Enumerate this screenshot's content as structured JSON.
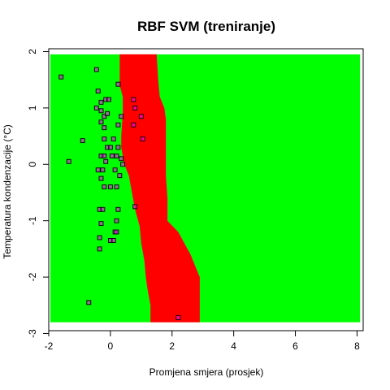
{
  "chart_data": {
    "type": "scatter",
    "title": "RBF SVM (treniranje)",
    "xlabel": "Promjena smjera (prosjek)",
    "ylabel": "Temperatura kondenzacije (°C)",
    "xlim": [
      -2.0,
      8.2
    ],
    "ylim": [
      -2.95,
      2.05
    ],
    "x_ticks": [
      -2,
      0,
      2,
      4,
      6,
      8
    ],
    "y_ticks": [
      -3,
      -2,
      -1,
      0,
      1,
      2
    ],
    "grid": false,
    "legend": "none",
    "background_region": {
      "color": "#00ff00",
      "x": [
        -1.95,
        8.1
      ],
      "y": [
        -2.8,
        1.95
      ]
    },
    "decision_region": {
      "color": "#ff0000",
      "left_boundary": [
        {
          "y": 1.95,
          "x": 0.3
        },
        {
          "y": 1.4,
          "x": 0.3
        },
        {
          "y": 1.2,
          "x": 0.4
        },
        {
          "y": 0.9,
          "x": 0.4
        },
        {
          "y": 0.5,
          "x": 0.35
        },
        {
          "y": 0.3,
          "x": 0.35
        },
        {
          "y": 0.0,
          "x": 0.45
        },
        {
          "y": -0.2,
          "x": 0.6
        },
        {
          "y": -0.5,
          "x": 0.7
        },
        {
          "y": -0.8,
          "x": 0.8
        },
        {
          "y": -1.1,
          "x": 0.95
        },
        {
          "y": -1.4,
          "x": 1.0
        },
        {
          "y": -1.7,
          "x": 1.1
        },
        {
          "y": -2.0,
          "x": 1.15
        },
        {
          "y": -2.2,
          "x": 1.2
        },
        {
          "y": -2.5,
          "x": 1.3
        },
        {
          "y": -2.8,
          "x": 1.3
        }
      ],
      "right_boundary": [
        {
          "y": 1.95,
          "x": 1.5
        },
        {
          "y": 1.5,
          "x": 1.55
        },
        {
          "y": 1.2,
          "x": 1.6
        },
        {
          "y": 1.0,
          "x": 1.75
        },
        {
          "y": 0.8,
          "x": 1.8
        },
        {
          "y": 0.3,
          "x": 1.8
        },
        {
          "y": -0.2,
          "x": 1.8
        },
        {
          "y": -0.6,
          "x": 1.85
        },
        {
          "y": -1.0,
          "x": 1.85
        },
        {
          "y": -1.2,
          "x": 2.2
        },
        {
          "y": -1.4,
          "x": 2.4
        },
        {
          "y": -1.6,
          "x": 2.6
        },
        {
          "y": -1.8,
          "x": 2.75
        },
        {
          "y": -2.0,
          "x": 2.9
        },
        {
          "y": -2.2,
          "x": 2.9
        },
        {
          "y": -2.5,
          "x": 2.9
        },
        {
          "y": -2.8,
          "x": 2.9
        }
      ]
    },
    "points": [
      {
        "x": -1.6,
        "y": 1.55
      },
      {
        "x": -0.45,
        "y": 1.68
      },
      {
        "x": -1.35,
        "y": 0.05
      },
      {
        "x": -0.9,
        "y": 0.42
      },
      {
        "x": 0.25,
        "y": 1.42
      },
      {
        "x": -0.4,
        "y": 1.3
      },
      {
        "x": -0.3,
        "y": 1.1
      },
      {
        "x": -0.15,
        "y": 1.15
      },
      {
        "x": -0.05,
        "y": 1.15
      },
      {
        "x": -0.45,
        "y": 1.0
      },
      {
        "x": -0.3,
        "y": 0.95
      },
      {
        "x": -0.2,
        "y": 0.85
      },
      {
        "x": -0.1,
        "y": 0.9
      },
      {
        "x": -0.3,
        "y": 0.75
      },
      {
        "x": -0.2,
        "y": 0.65
      },
      {
        "x": 0.25,
        "y": 0.7
      },
      {
        "x": 0.35,
        "y": 0.85
      },
      {
        "x": -0.2,
        "y": 0.45
      },
      {
        "x": 0.1,
        "y": 0.45
      },
      {
        "x": -0.1,
        "y": 0.3
      },
      {
        "x": 0.0,
        "y": 0.3
      },
      {
        "x": 0.25,
        "y": 0.3
      },
      {
        "x": -0.3,
        "y": 0.15
      },
      {
        "x": -0.2,
        "y": 0.15
      },
      {
        "x": 0.05,
        "y": 0.15
      },
      {
        "x": 0.2,
        "y": 0.15
      },
      {
        "x": 0.35,
        "y": 0.1
      },
      {
        "x": 0.4,
        "y": 0.0
      },
      {
        "x": -0.15,
        "y": 0.05
      },
      {
        "x": -0.4,
        "y": -0.1
      },
      {
        "x": -0.25,
        "y": -0.1
      },
      {
        "x": 0.15,
        "y": -0.1
      },
      {
        "x": 0.3,
        "y": -0.2
      },
      {
        "x": -0.3,
        "y": -0.25
      },
      {
        "x": -0.2,
        "y": -0.4
      },
      {
        "x": 0.0,
        "y": -0.4
      },
      {
        "x": 0.2,
        "y": -0.4
      },
      {
        "x": -0.35,
        "y": -0.8
      },
      {
        "x": -0.25,
        "y": -0.8
      },
      {
        "x": 0.25,
        "y": -0.8
      },
      {
        "x": 0.2,
        "y": -1.0
      },
      {
        "x": -0.3,
        "y": -1.05
      },
      {
        "x": 0.15,
        "y": -1.2
      },
      {
        "x": 0.2,
        "y": -1.2
      },
      {
        "x": -0.35,
        "y": -1.3
      },
      {
        "x": 0.0,
        "y": -1.35
      },
      {
        "x": 0.1,
        "y": -1.35
      },
      {
        "x": -0.35,
        "y": -1.5
      },
      {
        "x": 0.75,
        "y": 1.15
      },
      {
        "x": 0.8,
        "y": 1.0
      },
      {
        "x": 1.0,
        "y": 0.85
      },
      {
        "x": 0.75,
        "y": 0.7
      },
      {
        "x": 1.05,
        "y": 0.45
      },
      {
        "x": 0.8,
        "y": -0.75
      },
      {
        "x": -0.7,
        "y": -2.45
      },
      {
        "x": 2.2,
        "y": -2.72
      }
    ],
    "point_color": "#ff00ff"
  }
}
